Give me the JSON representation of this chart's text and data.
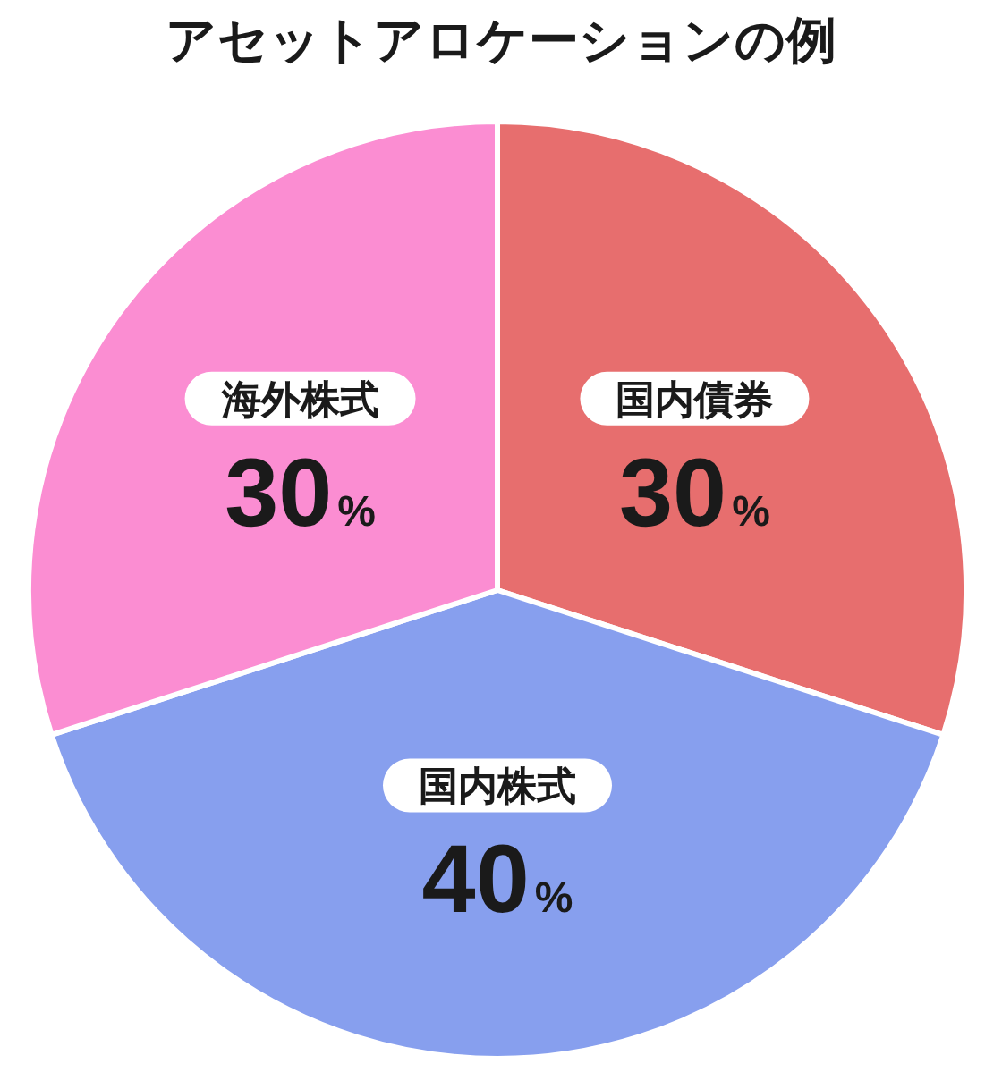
{
  "chart_data": {
    "type": "pie",
    "title": "アセットアロケーションの例",
    "categories": [
      "国内債券",
      "国内株式",
      "海外株式"
    ],
    "values": [
      30,
      40,
      30
    ],
    "colors": [
      "#e76e6e",
      "#879fee",
      "#fb8dd2"
    ],
    "value_labels": [
      "30%",
      "40%",
      "30%"
    ]
  }
}
